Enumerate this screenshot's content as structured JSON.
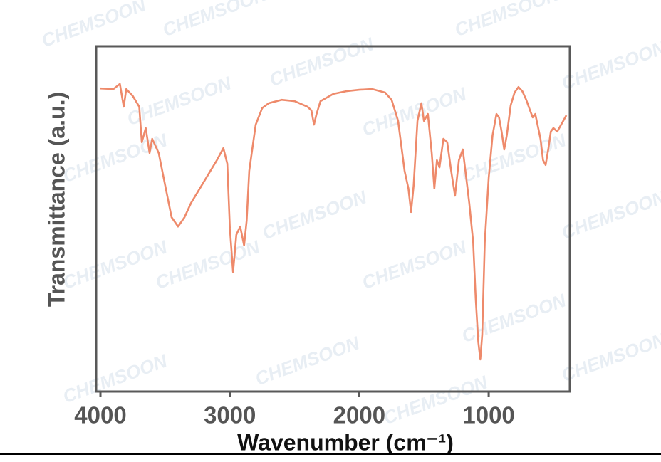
{
  "chart_data": {
    "type": "line",
    "y_label": "Transmittance (a.u.)",
    "x_label": "Wavenumber (cm⁻¹)",
    "watermark": "CHEMSOON",
    "color": "#ee8a6b",
    "xlim": [
      4033,
      373
    ],
    "xticks": [
      4000,
      3000,
      2000,
      1000
    ],
    "ylim": [
      0,
      100
    ],
    "x": [
      4000,
      3900,
      3850,
      3820,
      3800,
      3750,
      3700,
      3680,
      3650,
      3620,
      3600,
      3550,
      3500,
      3450,
      3400,
      3350,
      3300,
      3200,
      3100,
      3050,
      3020,
      3000,
      2975,
      2950,
      2920,
      2890,
      2870,
      2850,
      2800,
      2750,
      2700,
      2600,
      2500,
      2400,
      2370,
      2350,
      2330,
      2300,
      2200,
      2100,
      2000,
      1900,
      1800,
      1750,
      1700,
      1650,
      1620,
      1600,
      1580,
      1550,
      1520,
      1500,
      1470,
      1440,
      1420,
      1400,
      1380,
      1350,
      1320,
      1290,
      1260,
      1230,
      1200,
      1180,
      1150,
      1120,
      1100,
      1080,
      1065,
      1050,
      1030,
      1000,
      970,
      940,
      920,
      900,
      880,
      860,
      830,
      800,
      770,
      740,
      710,
      680,
      660,
      640,
      600,
      580,
      560,
      540,
      520,
      500,
      470,
      440,
      400
    ],
    "values": [
      87.8,
      87.6,
      89.1,
      82.5,
      87.6,
      85.6,
      82.5,
      72.2,
      76.3,
      69.1,
      73.2,
      69.1,
      59.8,
      50.5,
      47.8,
      50.5,
      54.6,
      60.8,
      67.0,
      70.5,
      66.0,
      47.4,
      34.6,
      45.4,
      47.8,
      42.3,
      49.5,
      63.9,
      77.3,
      82.1,
      83.5,
      84.5,
      84.1,
      82.5,
      81.4,
      77.3,
      80.4,
      84.1,
      86.2,
      87.0,
      87.4,
      87.6,
      86.6,
      84.5,
      78.4,
      63.9,
      58.8,
      52.0,
      59.6,
      78.4,
      83.5,
      78.4,
      80.4,
      69.1,
      58.8,
      67.0,
      64.9,
      73.2,
      72.2,
      63.9,
      56.7,
      67.0,
      70.1,
      63.9,
      54.6,
      43.3,
      26.8,
      14.4,
      9.3,
      16.5,
      43.3,
      61.9,
      74.2,
      80.4,
      79.4,
      75.3,
      70.1,
      74.2,
      82.9,
      86.6,
      88.2,
      87.0,
      84.5,
      81.4,
      79.4,
      80.4,
      73.2,
      67.0,
      65.6,
      70.1,
      75.3,
      76.3,
      75.3,
      77.3,
      80.0
    ]
  }
}
